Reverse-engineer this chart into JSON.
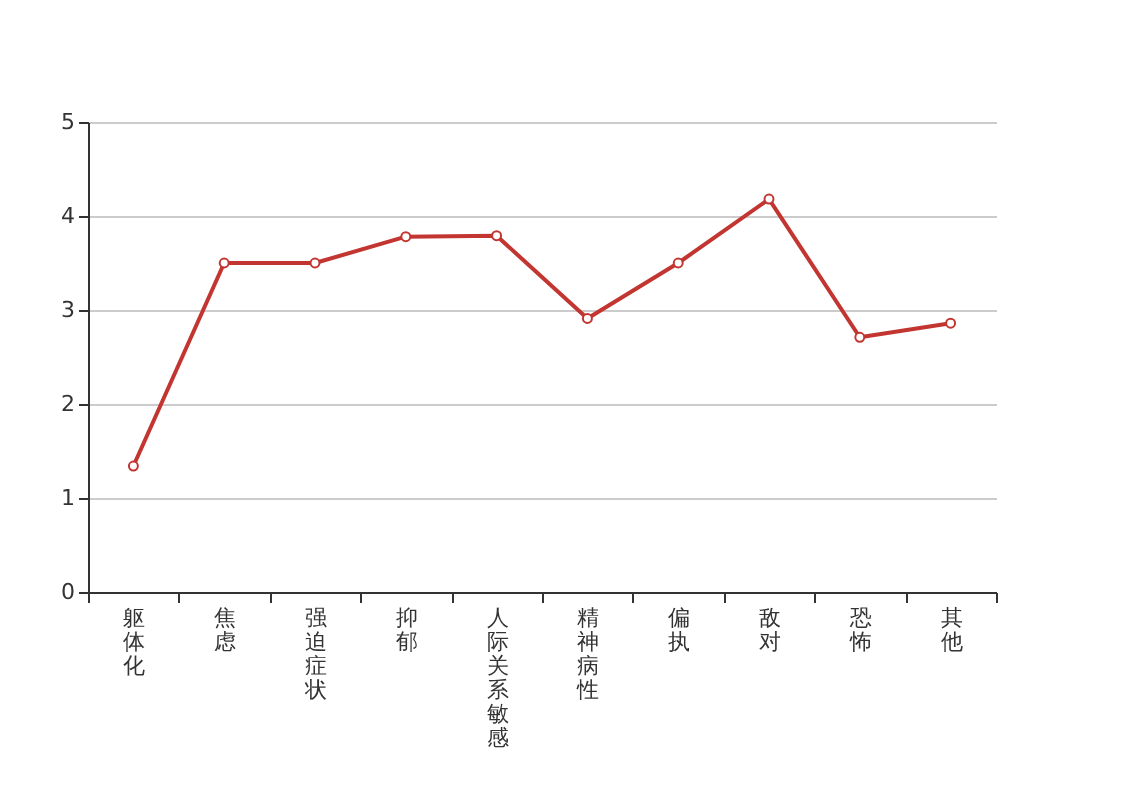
{
  "chart_data": {
    "type": "line",
    "categories": [
      "躯体化",
      "焦虑",
      "强迫症状",
      "抑郁",
      "人际关系敏感",
      "精神病性",
      "偏执",
      "敌对",
      "恐怖",
      "其他"
    ],
    "series": [
      {
        "color": "#c23531",
        "values": [
          1.34,
          3.5,
          3.5,
          3.78,
          3.79,
          2.91,
          3.5,
          4.18,
          2.71,
          2.86
        ]
      }
    ],
    "ylim": [
      0,
      5
    ],
    "yticks": [
      0,
      1,
      2,
      3,
      4,
      5
    ],
    "grid": "y",
    "marker": "circle",
    "line_style": "solid"
  }
}
